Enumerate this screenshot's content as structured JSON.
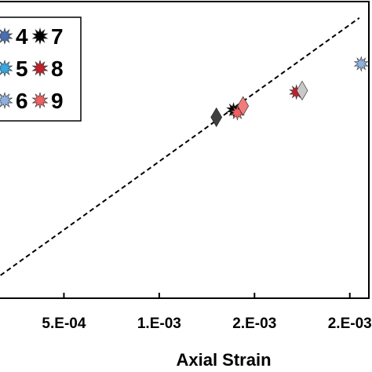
{
  "chart_data": {
    "type": "scatter",
    "xlabel": "Axial Strain",
    "x_tick_labels": [
      "5.E-04",
      "1.E-03",
      "2.E-03",
      "2.E-03"
    ],
    "x_ticks": [
      0.0005,
      0.001,
      0.0015,
      0.002
    ],
    "xlim": [
      0.0,
      0.0021
    ],
    "ylim": [
      0.0,
      1.0
    ],
    "grid": false,
    "legend_position": "top-left",
    "legend": [
      "4",
      "7",
      "5",
      "8",
      "6",
      "9"
    ],
    "colors": {
      "4": "#4a6fb0",
      "5": "#3aa6e0",
      "6": "#8fb0dd",
      "7": "#000000",
      "8": "#c0202a",
      "9": "#f06060",
      "diamond_dark": "#404040",
      "diamond_light": "#c8c8c8",
      "diamond_pink": "#f27c7c",
      "fit_line": "#000000"
    },
    "fit_line": {
      "style": "dashed",
      "points": [
        [
          0.0,
          0.0
        ],
        [
          0.00205,
          0.945
        ]
      ]
    },
    "series": [
      {
        "marker": "star",
        "color_key": "7",
        "points": [
          [
            0.00139,
            0.635
          ]
        ]
      },
      {
        "marker": "star",
        "color_key": "9",
        "points": [
          [
            0.00141,
            0.625
          ]
        ]
      },
      {
        "marker": "star",
        "color_key": "8",
        "points": [
          [
            0.00172,
            0.695
          ]
        ]
      },
      {
        "marker": "star",
        "color_key": "6",
        "points": [
          [
            0.00206,
            0.79
          ]
        ]
      },
      {
        "marker": "diamond",
        "color_key": "diamond_dark",
        "points": [
          [
            0.0013,
            0.61
          ]
        ]
      },
      {
        "marker": "diamond",
        "color_key": "diamond_pink",
        "points": [
          [
            0.00144,
            0.648
          ]
        ]
      },
      {
        "marker": "diamond",
        "color_key": "diamond_light",
        "points": [
          [
            0.00175,
            0.7
          ]
        ]
      }
    ]
  }
}
